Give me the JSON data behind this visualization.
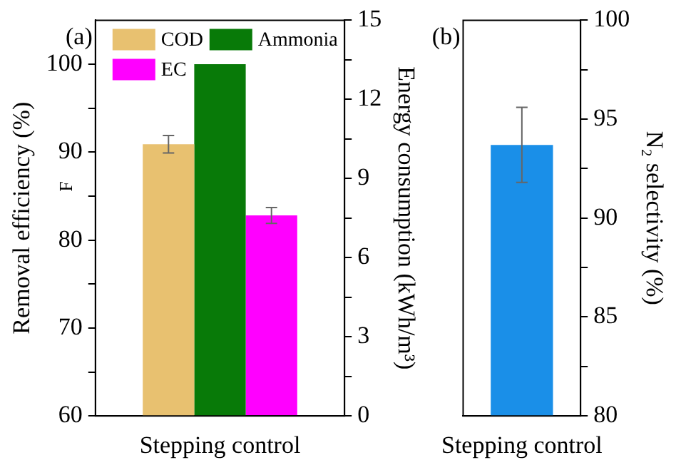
{
  "chart_data": [
    {
      "type": "bar",
      "title": "(a)",
      "categories": [
        "Stepping control"
      ],
      "series": [
        {
          "name": "COD",
          "color": "#e8c170",
          "values": [
            90.9
          ],
          "errors": [
            1
          ]
        },
        {
          "name": "Ammonia",
          "color": "#087a08",
          "values": [
            100
          ]
        },
        {
          "name": "EC",
          "color": "#ff00ff",
          "values": [
            7.6
          ],
          "errors": [
            0.3
          ],
          "axis": "y2"
        }
      ],
      "ylabel": "Removal efficiency (%)",
      "y2label": "Energy consumption (kWh/m³)",
      "ylim": [
        60,
        105
      ],
      "yticks": [
        60,
        {
          "value": 65,
          "label": null
        },
        70,
        {
          "value": 75,
          "label": null
        },
        80,
        {
          "value": 85,
          "label": null
        },
        90,
        {
          "value": 95,
          "label": null
        },
        100
      ],
      "y2lim": [
        0,
        15
      ],
      "y2ticks": [
        0,
        {
          "value": 1.5,
          "label": null
        },
        3,
        {
          "value": 4.5,
          "label": null
        },
        6,
        {
          "value": 7.5,
          "label": null
        },
        9,
        {
          "value": 10.5,
          "label": null
        },
        12,
        {
          "value": 13.5,
          "label": null
        },
        15
      ],
      "legend": "top left",
      "annotations": [
        "F"
      ]
    },
    {
      "type": "bar",
      "title": "(b)",
      "categories": [
        "Stepping control"
      ],
      "series": [
        {
          "color": "#1a8fe8",
          "values": [
            93.7
          ],
          "errors": [
            1.9
          ],
          "axis": "y2"
        }
      ],
      "y2label": "N₂ selectivity (%)",
      "y2lim": [
        80,
        100
      ],
      "y2ticks": [
        80,
        {
          "value": 82.5,
          "label": null
        },
        85,
        {
          "value": 87.5,
          "label": null
        },
        90,
        {
          "value": 92.5,
          "label": null
        },
        95,
        {
          "value": 97.5,
          "label": null
        },
        100
      ]
    }
  ]
}
